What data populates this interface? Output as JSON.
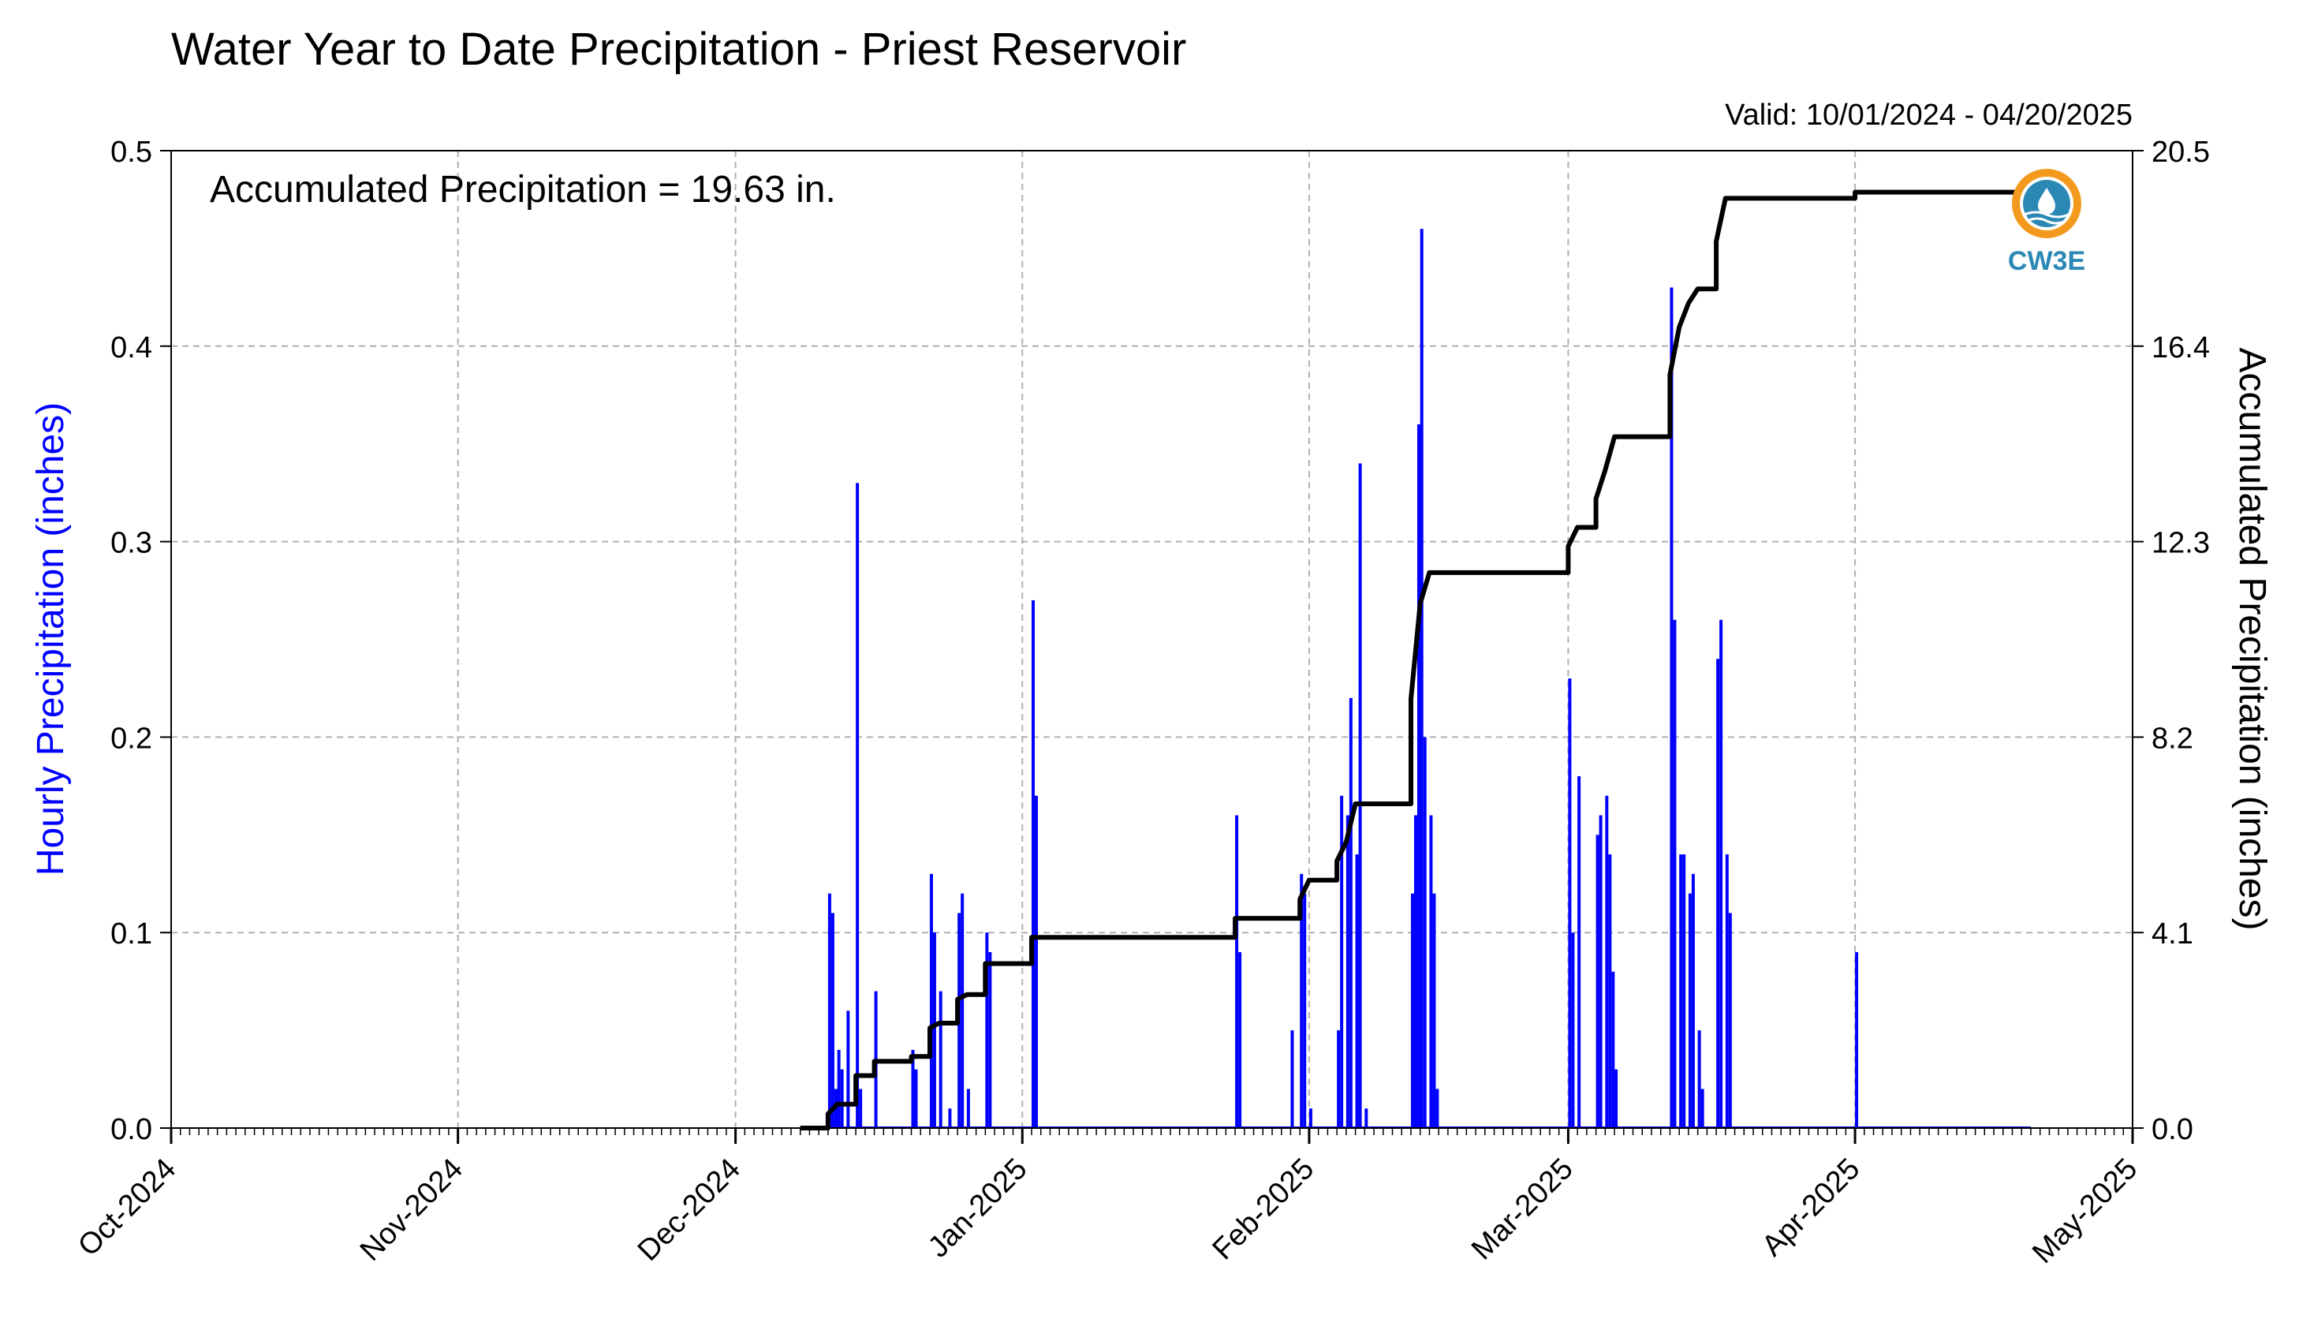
{
  "chart_data": {
    "type": "bar",
    "title": "Water Year to Date Precipitation - Priest Reservoir",
    "subtitle": "Valid: 10/01/2024 - 04/20/2025",
    "annotation": "Accumulated Precipitation = 19.63 in.",
    "ylabel": "Hourly Precipitation (inches)",
    "y2label": "Accumulated Precipitation (inches)",
    "ylim": [
      0,
      0.5
    ],
    "y2lim": [
      0,
      20.5
    ],
    "yticks": [
      "0.0",
      "0.1",
      "0.2",
      "0.3",
      "0.4",
      "0.5"
    ],
    "y2ticks": [
      "0.0",
      "4.1",
      "8.2",
      "12.3",
      "16.4",
      "20.5"
    ],
    "xticks": [
      "Oct-2024",
      "Nov-2024",
      "Dec-2024",
      "Jan-2025",
      "Feb-2025",
      "Mar-2025",
      "Apr-2025",
      "May-2025"
    ],
    "xlim": [
      "2024-10-01",
      "2025-05-01"
    ],
    "grid": true,
    "logo": "CW3E",
    "colors": {
      "hourly": "#0000ff",
      "accumulated": "#000000",
      "grid": "#b0b0b0",
      "logo_orange": "#f39a1e",
      "logo_blue": "#2b88b5"
    },
    "series": [
      {
        "name": "Hourly Precipitation (inches)",
        "style": "bars",
        "points": [
          [
            "2024-12-11",
            0.12
          ],
          [
            "2024-12-11",
            0.11
          ],
          [
            "2024-12-11",
            0.02
          ],
          [
            "2024-12-12",
            0.04
          ],
          [
            "2024-12-12",
            0.03
          ],
          [
            "2024-12-13",
            0.06
          ],
          [
            "2024-12-14",
            0.33
          ],
          [
            "2024-12-14",
            0.02
          ],
          [
            "2024-12-16",
            0.07
          ],
          [
            "2024-12-20",
            0.04
          ],
          [
            "2024-12-20",
            0.03
          ],
          [
            "2024-12-22",
            0.13
          ],
          [
            "2024-12-22",
            0.1
          ],
          [
            "2024-12-23",
            0.07
          ],
          [
            "2024-12-24",
            0.01
          ],
          [
            "2024-12-25",
            0.11
          ],
          [
            "2024-12-25",
            0.12
          ],
          [
            "2024-12-26",
            0.02
          ],
          [
            "2024-12-28",
            0.1
          ],
          [
            "2024-12-28",
            0.09
          ],
          [
            "2025-01-02",
            0.27
          ],
          [
            "2025-01-02",
            0.17
          ],
          [
            "2025-01-24",
            0.16
          ],
          [
            "2025-01-24",
            0.09
          ],
          [
            "2025-01-30",
            0.05
          ],
          [
            "2025-01-31",
            0.13
          ],
          [
            "2025-01-31",
            0.12
          ],
          [
            "2025-02-01",
            0.01
          ],
          [
            "2025-02-04",
            0.05
          ],
          [
            "2025-02-04",
            0.17
          ],
          [
            "2025-02-05",
            0.16
          ],
          [
            "2025-02-05",
            0.22
          ],
          [
            "2025-02-06",
            0.14
          ],
          [
            "2025-02-06",
            0.34
          ],
          [
            "2025-02-07",
            0.01
          ],
          [
            "2025-02-12",
            0.12
          ],
          [
            "2025-02-12",
            0.16
          ],
          [
            "2025-02-12",
            0.36
          ],
          [
            "2025-02-13",
            0.46
          ],
          [
            "2025-02-13",
            0.2
          ],
          [
            "2025-02-14",
            0.16
          ],
          [
            "2025-02-14",
            0.12
          ],
          [
            "2025-02-14",
            0.02
          ],
          [
            "2025-03-01",
            0.23
          ],
          [
            "2025-03-01",
            0.1
          ],
          [
            "2025-03-02",
            0.18
          ],
          [
            "2025-03-04",
            0.15
          ],
          [
            "2025-03-04",
            0.16
          ],
          [
            "2025-03-05",
            0.17
          ],
          [
            "2025-03-05",
            0.14
          ],
          [
            "2025-03-05",
            0.08
          ],
          [
            "2025-03-06",
            0.03
          ],
          [
            "2025-03-12",
            0.43
          ],
          [
            "2025-03-12",
            0.26
          ],
          [
            "2025-03-13",
            0.14
          ],
          [
            "2025-03-13",
            0.14
          ],
          [
            "2025-03-14",
            0.12
          ],
          [
            "2025-03-14",
            0.13
          ],
          [
            "2025-03-15",
            0.05
          ],
          [
            "2025-03-15",
            0.02
          ],
          [
            "2025-03-17",
            0.24
          ],
          [
            "2025-03-17",
            0.26
          ],
          [
            "2025-03-18",
            0.14
          ],
          [
            "2025-03-18",
            0.11
          ],
          [
            "2025-04-01",
            0.09
          ]
        ]
      },
      {
        "name": "Accumulated Precipitation (inches)",
        "style": "step",
        "points": [
          [
            "2024-12-08",
            0.0
          ],
          [
            "2024-12-11",
            0.0
          ],
          [
            "2024-12-11",
            0.3
          ],
          [
            "2024-12-12",
            0.5
          ],
          [
            "2024-12-14",
            0.5
          ],
          [
            "2024-12-14",
            1.1
          ],
          [
            "2024-12-16",
            1.1
          ],
          [
            "2024-12-16",
            1.4
          ],
          [
            "2024-12-20",
            1.4
          ],
          [
            "2024-12-20",
            1.5
          ],
          [
            "2024-12-22",
            1.5
          ],
          [
            "2024-12-22",
            2.1
          ],
          [
            "2024-12-23",
            2.2
          ],
          [
            "2024-12-25",
            2.2
          ],
          [
            "2024-12-25",
            2.7
          ],
          [
            "2024-12-26",
            2.8
          ],
          [
            "2024-12-28",
            2.8
          ],
          [
            "2024-12-28",
            3.45
          ],
          [
            "2025-01-02",
            3.45
          ],
          [
            "2025-01-02",
            4.0
          ],
          [
            "2025-01-24",
            4.0
          ],
          [
            "2025-01-24",
            4.4
          ],
          [
            "2025-01-31",
            4.4
          ],
          [
            "2025-01-31",
            4.8
          ],
          [
            "2025-02-01",
            5.2
          ],
          [
            "2025-02-04",
            5.2
          ],
          [
            "2025-02-04",
            5.6
          ],
          [
            "2025-02-05",
            6.0
          ],
          [
            "2025-02-06",
            6.8
          ],
          [
            "2025-02-12",
            6.8
          ],
          [
            "2025-02-12",
            9.0
          ],
          [
            "2025-02-13",
            11.0
          ],
          [
            "2025-02-14",
            11.65
          ],
          [
            "2025-03-01",
            11.65
          ],
          [
            "2025-03-01",
            12.2
          ],
          [
            "2025-03-02",
            12.6
          ],
          [
            "2025-03-04",
            12.6
          ],
          [
            "2025-03-04",
            13.2
          ],
          [
            "2025-03-05",
            13.8
          ],
          [
            "2025-03-06",
            14.5
          ],
          [
            "2025-03-12",
            14.5
          ],
          [
            "2025-03-12",
            15.8
          ],
          [
            "2025-03-13",
            16.8
          ],
          [
            "2025-03-14",
            17.3
          ],
          [
            "2025-03-15",
            17.6
          ],
          [
            "2025-03-17",
            17.6
          ],
          [
            "2025-03-17",
            18.6
          ],
          [
            "2025-03-18",
            19.5
          ],
          [
            "2025-04-01",
            19.5
          ],
          [
            "2025-04-01",
            19.63
          ],
          [
            "2025-04-20",
            19.63
          ]
        ]
      }
    ]
  }
}
